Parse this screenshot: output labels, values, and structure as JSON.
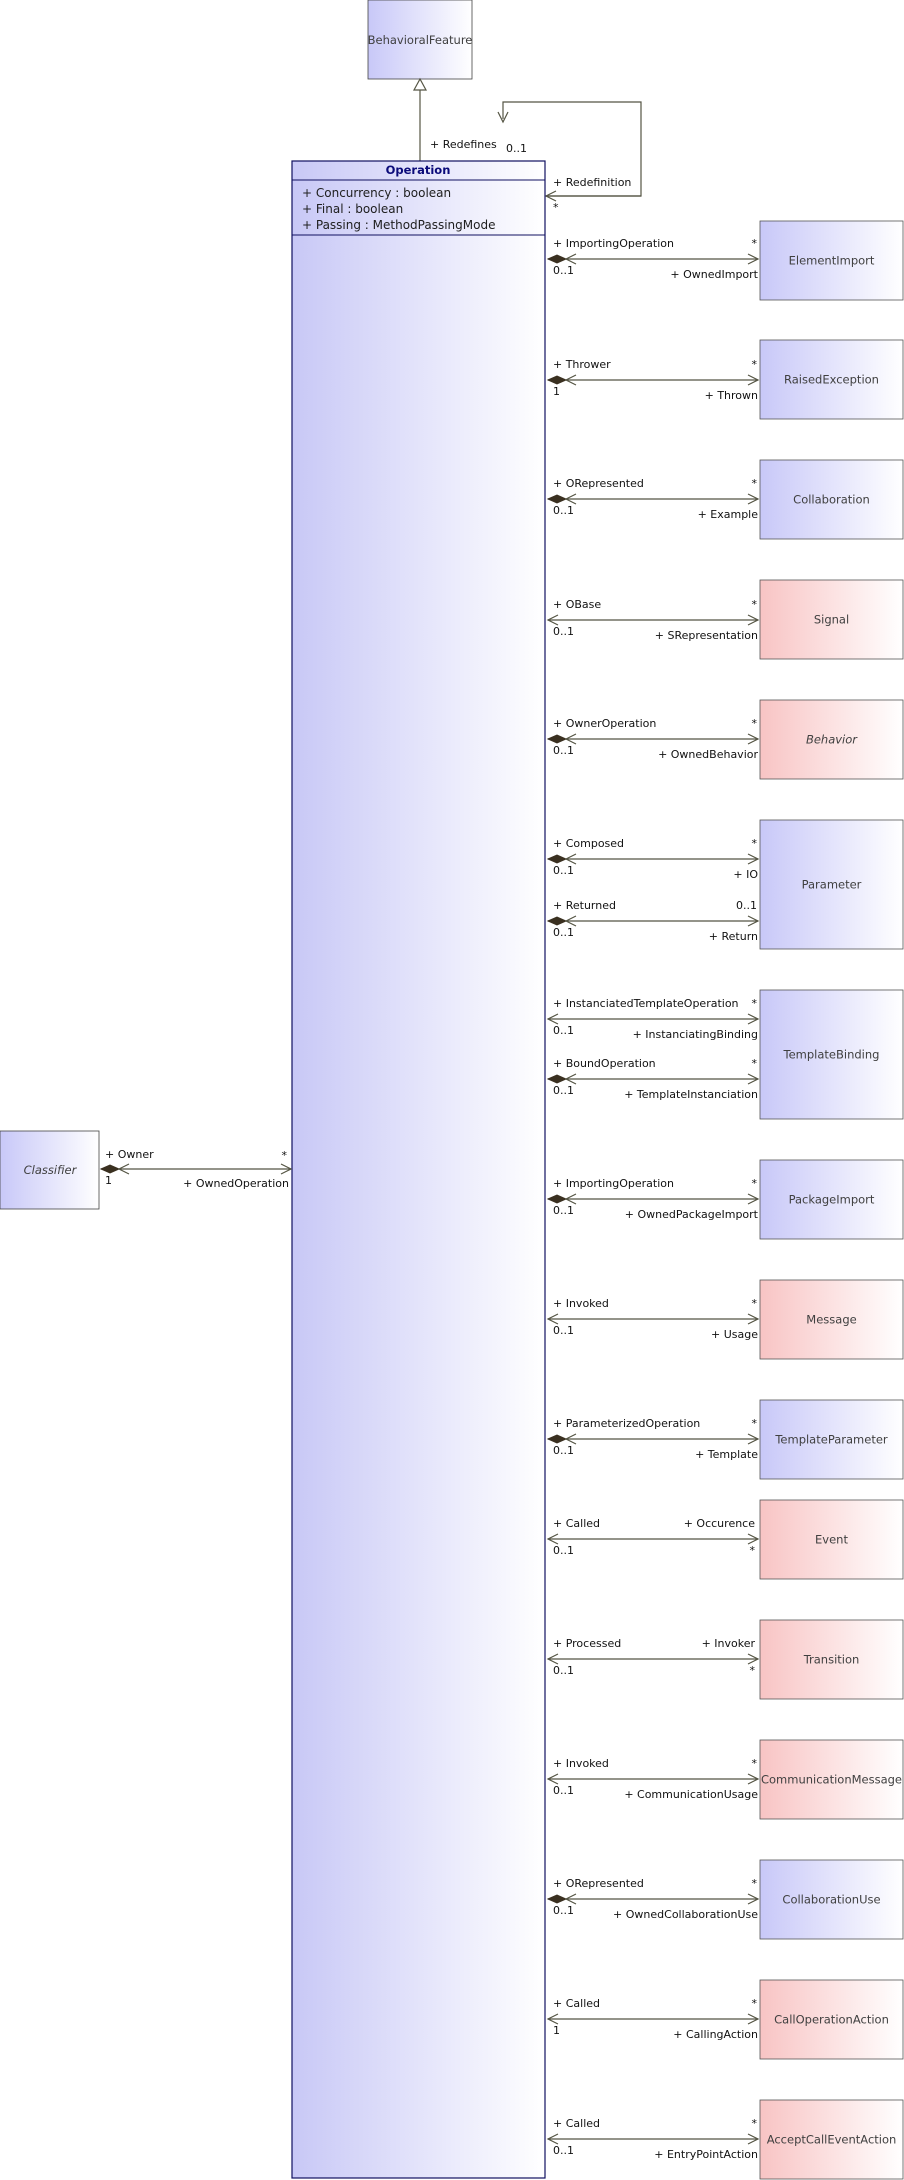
{
  "operation": {
    "name": "Operation",
    "attributes": [
      "+ Concurrency : boolean",
      "+ Final : boolean",
      "+ Passing : MethodPassingMode"
    ]
  },
  "generalization": {
    "parent": "BehavioralFeature",
    "redefines_role": "+ Redefines",
    "redefines_mult": "0..1",
    "redefinition_role": "+ Redefinition",
    "redefinition_mult": "*"
  },
  "classifier": {
    "name": "Classifier",
    "italic": true,
    "near_role": "+ Owner",
    "near_mult": "1",
    "far_role": "+ OwnedOperation",
    "far_mult": "*"
  },
  "colors": {
    "blue_class": "#c8c8f8",
    "pink_class": "#f8c4c4",
    "operation_fill": "#c8c8f6",
    "border": "#101060"
  },
  "associations": [
    {
      "target": "ElementImport",
      "color": "blue",
      "italic": false,
      "near_role": "+ ImportingOperation",
      "near_mult": "0..1",
      "far_role": "+ OwnedImport",
      "far_mult": "*",
      "composite": true
    },
    {
      "target": "RaisedException",
      "color": "blue",
      "italic": false,
      "near_role": "+ Thrower",
      "near_mult": "1",
      "far_role": "+ Thrown",
      "far_mult": "*",
      "composite": true
    },
    {
      "target": "Collaboration",
      "color": "blue",
      "italic": false,
      "near_role": "+ ORepresented",
      "near_mult": "0..1",
      "far_role": "+ Example",
      "far_mult": "*",
      "composite": true
    },
    {
      "target": "Signal",
      "color": "pink",
      "italic": false,
      "near_role": "+ OBase",
      "near_mult": "0..1",
      "far_role": "+ SRepresentation",
      "far_mult": "*",
      "composite": false
    },
    {
      "target": "Behavior",
      "color": "pink",
      "italic": true,
      "near_role": "+ OwnerOperation",
      "near_mult": "0..1",
      "far_role": "+ OwnedBehavior",
      "far_mult": "*",
      "composite": true
    },
    {
      "target": "Parameter",
      "color": "blue",
      "italic": false,
      "near_role": "+ Composed",
      "near_mult": "0..1",
      "far_role": "+ IO",
      "far_mult": "*",
      "composite": true
    },
    {
      "target": "",
      "color": "blue",
      "italic": false,
      "near_role": "+ Returned",
      "near_mult": "0..1",
      "far_role": "+ Return",
      "far_mult": "0..1",
      "composite": true
    },
    {
      "target": "TemplateBinding",
      "color": "blue",
      "italic": false,
      "near_role": "+ InstanciatedTemplateOperation",
      "near_mult": "0..1",
      "far_role": "+ InstanciatingBinding",
      "far_mult": "*",
      "composite": false
    },
    {
      "target": "",
      "color": "blue",
      "italic": false,
      "near_role": "+ BoundOperation",
      "near_mult": "0..1",
      "far_role": "+ TemplateInstanciation",
      "far_mult": "*",
      "composite": true
    },
    {
      "target": "PackageImport",
      "color": "blue",
      "italic": false,
      "near_role": "+ ImportingOperation",
      "near_mult": "0..1",
      "far_role": "+ OwnedPackageImport",
      "far_mult": "*",
      "composite": true
    },
    {
      "target": "Message",
      "color": "pink",
      "italic": false,
      "near_role": "+ Invoked",
      "near_mult": "0..1",
      "far_role": "+ Usage",
      "far_mult": "*",
      "composite": false
    },
    {
      "target": "TemplateParameter",
      "color": "blue",
      "italic": false,
      "near_role": "+ ParameterizedOperation",
      "near_mult": "0..1",
      "far_role": "+ Template",
      "far_mult": "*",
      "composite": true
    },
    {
      "target": "Event",
      "color": "pink",
      "italic": false,
      "near_role": "+ Called",
      "near_mult": "0..1",
      "far_role": "+ Occurence",
      "far_mult": "*",
      "composite": false,
      "far_role_above": true
    },
    {
      "target": "Transition",
      "color": "pink",
      "italic": false,
      "near_role": "+ Processed",
      "near_mult": "0..1",
      "far_role": "+ Invoker",
      "far_mult": "*",
      "composite": false,
      "far_role_above": true
    },
    {
      "target": "CommunicationMessage",
      "color": "pink",
      "italic": false,
      "near_role": "+ Invoked",
      "near_mult": "0..1",
      "far_role": "+ CommunicationUsage",
      "far_mult": "*",
      "composite": false
    },
    {
      "target": "CollaborationUse",
      "color": "blue",
      "italic": false,
      "near_role": "+ ORepresented",
      "near_mult": "0..1",
      "far_role": "+ OwnedCollaborationUse",
      "far_mult": "*",
      "composite": true
    },
    {
      "target": "CallOperationAction",
      "color": "pink",
      "italic": false,
      "near_role": "+ Called",
      "near_mult": "1",
      "far_role": "+ CallingAction",
      "far_mult": "*",
      "composite": false
    },
    {
      "target": "AcceptCallEventAction",
      "color": "pink",
      "italic": false,
      "near_role": "+ Called",
      "near_mult": "0..1",
      "far_role": "+ EntryPointAction",
      "far_mult": "*",
      "composite": false
    }
  ]
}
